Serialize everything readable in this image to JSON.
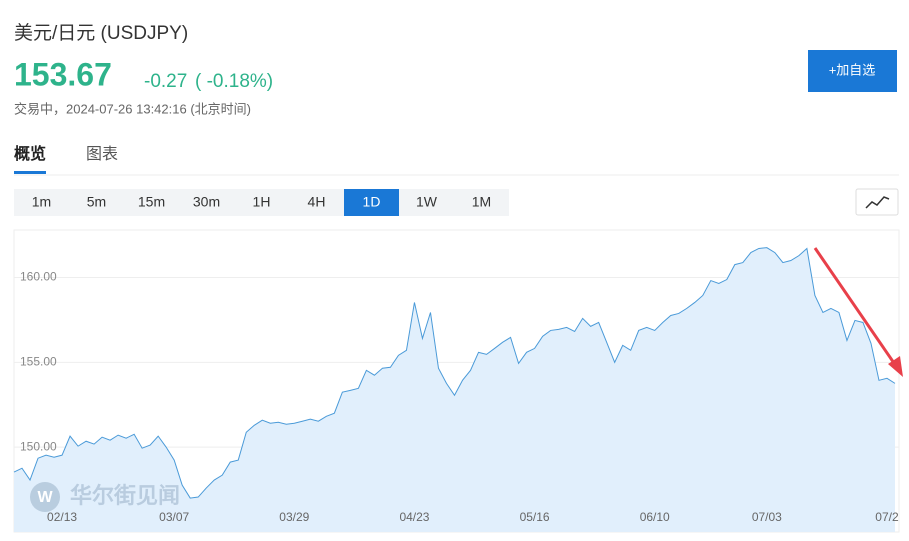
{
  "header": {
    "title": "美元/日元 (USDJPY)",
    "price": "153.67",
    "change": "-0.27",
    "change_pct": "( -0.18%)",
    "status": "交易中，2024-07-26 13:42:16 (北京时间)",
    "watch_button": "+加自选"
  },
  "tabs": [
    "概览",
    "图表"
  ],
  "intervals": [
    "1m",
    "5m",
    "15m",
    "30m",
    "1H",
    "4H",
    "1D",
    "1W",
    "1M"
  ],
  "watermark": "华尔街见闻",
  "chart_data": {
    "type": "line",
    "categories": [
      null,
      null,
      null,
      null,
      null,
      null,
      "02/13",
      null,
      null,
      null,
      null,
      null,
      null,
      null,
      null,
      null,
      null,
      null,
      null,
      null,
      "03/07",
      null,
      null,
      null,
      null,
      null,
      null,
      null,
      null,
      null,
      null,
      null,
      null,
      null,
      null,
      "03/29",
      null,
      null,
      null,
      null,
      null,
      null,
      null,
      null,
      null,
      null,
      null,
      null,
      null,
      null,
      "04/23",
      null,
      null,
      null,
      null,
      null,
      null,
      null,
      null,
      null,
      null,
      null,
      null,
      null,
      null,
      "05/16",
      null,
      null,
      null,
      null,
      null,
      null,
      null,
      null,
      null,
      null,
      null,
      null,
      null,
      null,
      "06/10",
      null,
      null,
      null,
      null,
      null,
      null,
      null,
      null,
      null,
      null,
      null,
      null,
      null,
      "07/03",
      null,
      null,
      null,
      null,
      null,
      null,
      null,
      null,
      null,
      null,
      null,
      null,
      null,
      null,
      "07/2",
      null
    ],
    "values": [
      148.53,
      148.76,
      148.06,
      149.35,
      149.53,
      149.41,
      149.53,
      150.65,
      150.06,
      150.35,
      150.18,
      150.59,
      150.41,
      150.71,
      150.53,
      150.76,
      149.94,
      150.12,
      150.65,
      150.0,
      149.24,
      147.76,
      147.0,
      147.06,
      147.59,
      148.06,
      148.35,
      149.12,
      149.24,
      150.88,
      151.29,
      151.59,
      151.41,
      151.47,
      151.35,
      151.41,
      151.53,
      151.65,
      151.53,
      151.82,
      152.0,
      153.24,
      153.35,
      153.47,
      154.53,
      154.24,
      154.65,
      154.71,
      155.41,
      155.71,
      158.53,
      156.41,
      157.94,
      154.65,
      153.76,
      153.06,
      153.94,
      154.53,
      155.59,
      155.47,
      155.82,
      156.18,
      156.47,
      154.94,
      155.59,
      155.82,
      156.53,
      156.88,
      156.94,
      157.06,
      156.82,
      157.59,
      157.12,
      157.35,
      156.18,
      155.0,
      156.0,
      155.71,
      156.88,
      157.06,
      156.88,
      157.35,
      157.76,
      157.88,
      158.18,
      158.53,
      158.94,
      159.82,
      159.65,
      159.88,
      160.76,
      160.88,
      161.47,
      161.71,
      161.76,
      161.47,
      160.88,
      161.0,
      161.29,
      161.71,
      158.94,
      157.94,
      158.18,
      157.94,
      156.29,
      157.47,
      157.35,
      156.12,
      153.94,
      154.06,
      153.76
    ],
    "color": "#4a9ad8",
    "fill": "#e1effc",
    "ylim": [
      145,
      162.8
    ],
    "yticks": [
      {
        "value": 150,
        "label": "150.00"
      },
      {
        "value": 155,
        "label": "155.00"
      },
      {
        "value": 160,
        "label": "160.00"
      }
    ],
    "grid": true
  }
}
